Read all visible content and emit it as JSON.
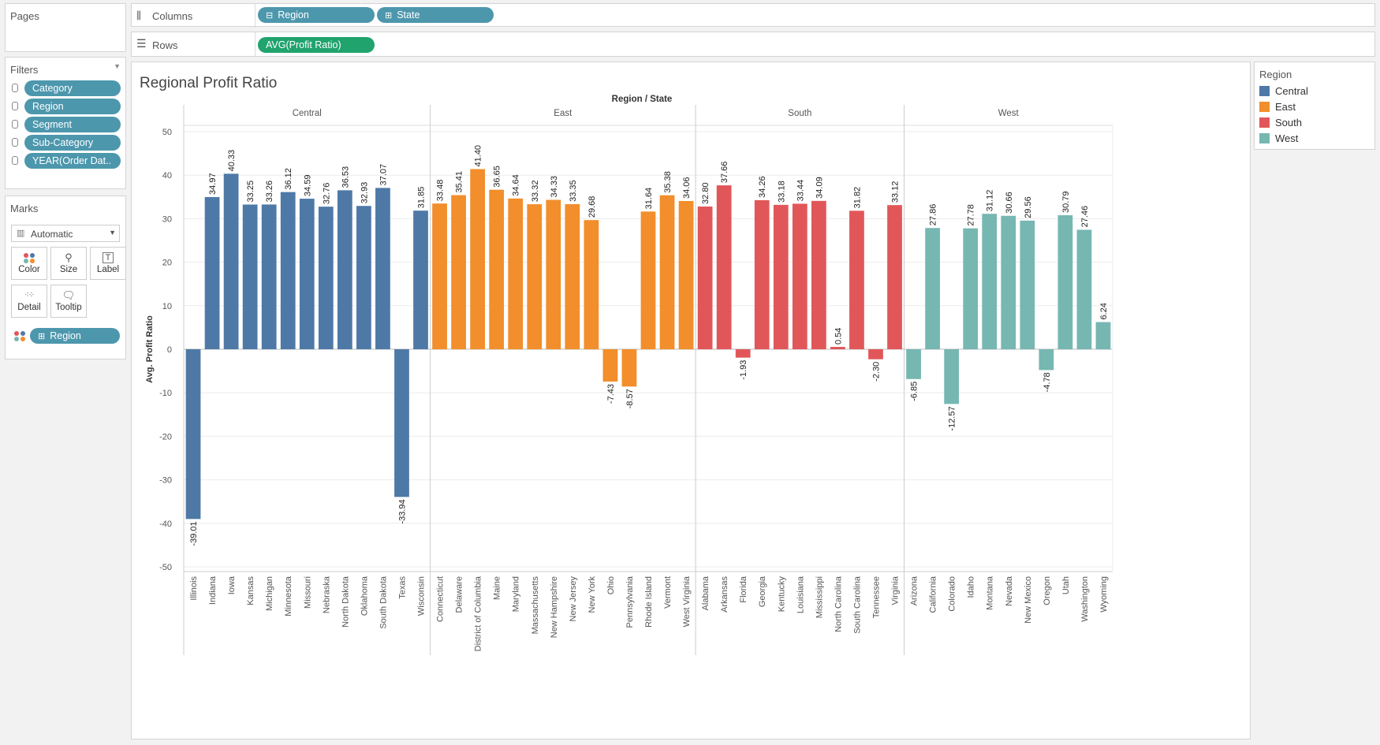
{
  "pages": {
    "title": "Pages"
  },
  "shelves": {
    "columns_label": "Columns",
    "columns": [
      {
        "prefix": "⊟",
        "label": "Region"
      },
      {
        "prefix": "⊞",
        "label": "State"
      }
    ],
    "rows_label": "Rows",
    "rows": [
      {
        "label": "AVG(Profit Ratio)"
      }
    ]
  },
  "filters": {
    "title": "Filters",
    "items": [
      "Category",
      "Region",
      "Segment",
      "Sub-Category",
      "YEAR(Order Dat.."
    ]
  },
  "marks": {
    "title": "Marks",
    "type": "Automatic",
    "buttons": [
      "Color",
      "Size",
      "Label",
      "Detail",
      "Tooltip"
    ],
    "color_field": "Region"
  },
  "legend": {
    "title": "Region",
    "items": [
      {
        "label": "Central",
        "color": "#4e79a7"
      },
      {
        "label": "East",
        "color": "#f28e2b"
      },
      {
        "label": "South",
        "color": "#e15759"
      },
      {
        "label": "West",
        "color": "#76b7b2"
      }
    ]
  },
  "chart_data": {
    "type": "bar",
    "title": "Regional Profit Ratio",
    "header": "Region / State",
    "ylabel": "Avg. Profit Ratio",
    "ylim": [
      -50,
      50
    ],
    "yticks": [
      50,
      40,
      30,
      20,
      10,
      0,
      -10,
      -20,
      -30,
      -40,
      -50
    ],
    "grid": true,
    "groups": [
      {
        "name": "Central",
        "color": "#4e79a7",
        "bars": [
          {
            "state": "Illinois",
            "value": -39.01,
            "label": "-39.01"
          },
          {
            "state": "Indiana",
            "value": 34.97,
            "label": "34.97"
          },
          {
            "state": "Iowa",
            "value": 40.33,
            "label": "40.33"
          },
          {
            "state": "Kansas",
            "value": 33.25,
            "label": "33.25"
          },
          {
            "state": "Michigan",
            "value": 33.26,
            "label": "33.26"
          },
          {
            "state": "Minnesota",
            "value": 36.12,
            "label": "36.12"
          },
          {
            "state": "Missouri",
            "value": 34.59,
            "label": "34.59"
          },
          {
            "state": "Nebraska",
            "value": 32.76,
            "label": "32.76"
          },
          {
            "state": "North Dakota",
            "value": 36.53,
            "label": "36.53"
          },
          {
            "state": "Oklahoma",
            "value": 32.93,
            "label": "32.93"
          },
          {
            "state": "South Dakota",
            "value": 37.07,
            "label": "37.07"
          },
          {
            "state": "Texas",
            "value": -33.94,
            "label": "-33.94"
          },
          {
            "state": "Wisconsin",
            "value": 31.85,
            "label": "31.85"
          }
        ]
      },
      {
        "name": "East",
        "color": "#f28e2b",
        "bars": [
          {
            "state": "Connecticut",
            "value": 33.48,
            "label": "33.48"
          },
          {
            "state": "Delaware",
            "value": 35.41,
            "label": "35.41"
          },
          {
            "state": "District of Columbia",
            "value": 41.4,
            "label": "41.40"
          },
          {
            "state": "Maine",
            "value": 36.65,
            "label": "36.65"
          },
          {
            "state": "Maryland",
            "value": 34.64,
            "label": "34.64"
          },
          {
            "state": "Massachusetts",
            "value": 33.32,
            "label": "33.32"
          },
          {
            "state": "New Hampshire",
            "value": 34.33,
            "label": "34.33"
          },
          {
            "state": "New Jersey",
            "value": 33.35,
            "label": "33.35"
          },
          {
            "state": "New York",
            "value": 29.68,
            "label": "29.68"
          },
          {
            "state": "Ohio",
            "value": -7.43,
            "label": "-7.43"
          },
          {
            "state": "Pennsylvania",
            "value": -8.57,
            "label": "-8.57"
          },
          {
            "state": "Rhode Island",
            "value": 31.64,
            "label": "31.64"
          },
          {
            "state": "Vermont",
            "value": 35.38,
            "label": "35.38"
          },
          {
            "state": "West Virginia",
            "value": 34.06,
            "label": "34.06"
          }
        ]
      },
      {
        "name": "South",
        "color": "#e15759",
        "bars": [
          {
            "state": "Alabama",
            "value": 32.8,
            "label": "32.80"
          },
          {
            "state": "Arkansas",
            "value": 37.66,
            "label": "37.66"
          },
          {
            "state": "Florida",
            "value": -1.93,
            "label": "-1.93"
          },
          {
            "state": "Georgia",
            "value": 34.26,
            "label": "34.26"
          },
          {
            "state": "Kentucky",
            "value": 33.18,
            "label": "33.18"
          },
          {
            "state": "Louisiana",
            "value": 33.44,
            "label": "33.44"
          },
          {
            "state": "Mississippi",
            "value": 34.09,
            "label": "34.09"
          },
          {
            "state": "North Carolina",
            "value": 0.54,
            "label": "0.54"
          },
          {
            "state": "South Carolina",
            "value": 31.82,
            "label": "31.82"
          },
          {
            "state": "Tennessee",
            "value": -2.3,
            "label": "-2.30"
          },
          {
            "state": "Virginia",
            "value": 33.12,
            "label": "33.12"
          }
        ]
      },
      {
        "name": "West",
        "color": "#76b7b2",
        "bars": [
          {
            "state": "Arizona",
            "value": -6.85,
            "label": "-6.85"
          },
          {
            "state": "California",
            "value": 27.86,
            "label": "27.86"
          },
          {
            "state": "Colorado",
            "value": -12.57,
            "label": "-12.57"
          },
          {
            "state": "Idaho",
            "value": 27.78,
            "label": "27.78"
          },
          {
            "state": "Montana",
            "value": 31.12,
            "label": "31.12"
          },
          {
            "state": "Nevada",
            "value": 30.66,
            "label": "30.66"
          },
          {
            "state": "New Mexico",
            "value": 29.56,
            "label": "29.56"
          },
          {
            "state": "Oregon",
            "value": -4.78,
            "label": "-4.78"
          },
          {
            "state": "Utah",
            "value": 30.79,
            "label": "30.79"
          },
          {
            "state": "Washington",
            "value": 27.46,
            "label": "27.46"
          },
          {
            "state": "Wyoming",
            "value": 6.24,
            "label": "6.24"
          }
        ]
      }
    ]
  }
}
